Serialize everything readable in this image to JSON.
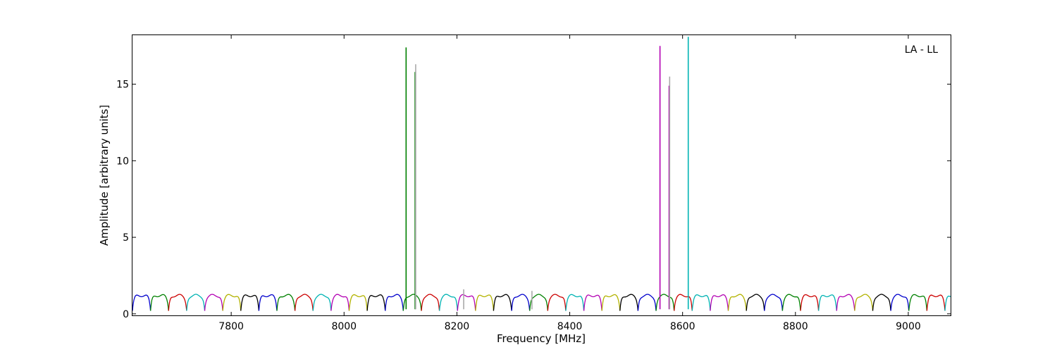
{
  "chart_data": {
    "type": "line",
    "xlabel": "Frequency [MHz]",
    "ylabel": "Amplitude [arbitrary units]",
    "annotation": "LA - LL",
    "xlim": [
      7625,
      9075
    ],
    "ylim": [
      -0.1,
      18.2
    ],
    "xticks": [
      7800,
      8000,
      8200,
      8400,
      8600,
      8800,
      9000
    ],
    "yticks": [
      0,
      5,
      10,
      15
    ],
    "channel_width_mhz": 32,
    "channel_start_mhz": 7625,
    "channel_colors": [
      "#0000cc",
      "#008000",
      "#cc0000",
      "#00b3b3",
      "#b300b3",
      "#b3b300",
      "#000000"
    ],
    "flagged_color": "#aaaaaa",
    "baseline_peak_amplitude": 1.2,
    "baseline_trough_amplitude": 0.2,
    "spikes": [
      {
        "x": 8110,
        "y": 17.4,
        "color": "#008000"
      },
      {
        "x": 8126,
        "y": 15.8,
        "color": "#008000"
      },
      {
        "x": 8127,
        "y": 16.3,
        "color": "#aaaaaa"
      },
      {
        "x": 8212,
        "y": 1.6,
        "color": "#aaaaaa"
      },
      {
        "x": 8333,
        "y": 1.5,
        "color": "#aaaaaa"
      },
      {
        "x": 8560,
        "y": 17.5,
        "color": "#b300b3"
      },
      {
        "x": 8576,
        "y": 14.9,
        "color": "#b300b3"
      },
      {
        "x": 8577,
        "y": 15.5,
        "color": "#aaaaaa"
      },
      {
        "x": 8610,
        "y": 18.1,
        "color": "#00b3b3"
      }
    ]
  }
}
